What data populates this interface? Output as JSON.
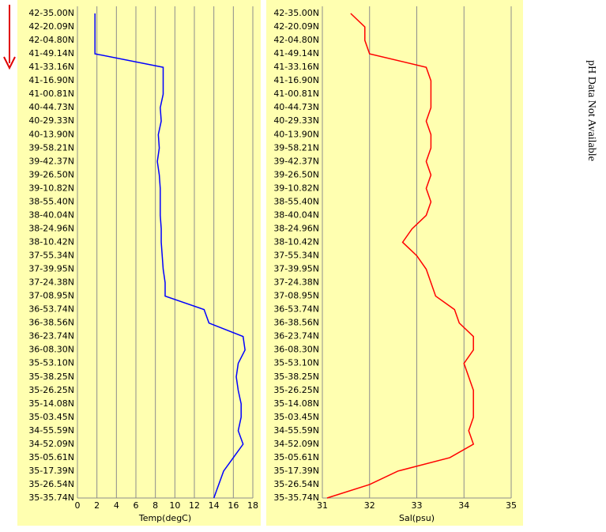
{
  "chart_data": [
    {
      "type": "line",
      "xlabel": "Temp(degC)",
      "color": "#0000ff",
      "grid": true,
      "categories": [
        "42-35.00N",
        "42-20.09N",
        "42-04.80N",
        "41-49.14N",
        "41-33.16N",
        "41-16.90N",
        "41-00.81N",
        "40-44.73N",
        "40-29.33N",
        "40-13.90N",
        "39-58.21N",
        "39-42.37N",
        "39-26.50N",
        "39-10.82N",
        "38-55.40N",
        "38-40.04N",
        "38-24.96N",
        "38-10.42N",
        "37-55.34N",
        "37-39.95N",
        "37-24.38N",
        "37-08.95N",
        "36-53.74N",
        "36-38.56N",
        "36-23.74N",
        "36-08.30N",
        "35-53.10N",
        "35-38.25N",
        "35-26.25N",
        "35-14.08N",
        "35-03.45N",
        "34-55.59N",
        "34-52.09N",
        "35-05.61N",
        "35-17.39N",
        "35-26.54N",
        "35-35.74N"
      ],
      "values": [
        1.8,
        1.8,
        1.8,
        1.8,
        8.8,
        8.8,
        8.8,
        8.5,
        8.6,
        8.3,
        8.4,
        8.2,
        8.4,
        8.5,
        8.5,
        8.5,
        8.6,
        8.6,
        8.7,
        8.8,
        9.0,
        9.0,
        13.0,
        13.5,
        17.0,
        17.2,
        16.5,
        16.3,
        16.5,
        16.8,
        16.8,
        16.5,
        17.0,
        16.0,
        15.0,
        14.5,
        14.0
      ],
      "xlim": [
        0,
        18
      ],
      "xticks": [
        0,
        2,
        4,
        6,
        8,
        10,
        12,
        14,
        16,
        18
      ]
    },
    {
      "type": "line",
      "xlabel": "Sal(psu)",
      "color": "#ff0000",
      "grid": true,
      "categories": [
        "42-35.00N",
        "42-20.09N",
        "42-04.80N",
        "41-49.14N",
        "41-33.16N",
        "41-16.90N",
        "41-00.81N",
        "40-44.73N",
        "40-29.33N",
        "40-13.90N",
        "39-58.21N",
        "39-42.37N",
        "39-26.50N",
        "39-10.82N",
        "38-55.40N",
        "38-40.04N",
        "38-24.96N",
        "38-10.42N",
        "37-55.34N",
        "37-39.95N",
        "37-24.38N",
        "37-08.95N",
        "36-53.74N",
        "36-38.56N",
        "36-23.74N",
        "36-08.30N",
        "35-53.10N",
        "35-38.25N",
        "35-26.25N",
        "35-14.08N",
        "35-03.45N",
        "34-55.59N",
        "34-52.09N",
        "35-05.61N",
        "35-17.39N",
        "35-26.54N",
        "35-35.74N"
      ],
      "values": [
        31.6,
        31.9,
        31.9,
        32.0,
        33.2,
        33.3,
        33.3,
        33.3,
        33.2,
        33.3,
        33.3,
        33.2,
        33.3,
        33.2,
        33.3,
        33.2,
        32.9,
        32.7,
        33.0,
        33.2,
        33.3,
        33.4,
        33.8,
        33.9,
        34.2,
        34.2,
        34.0,
        34.1,
        34.2,
        34.2,
        34.2,
        34.1,
        34.2,
        33.7,
        32.6,
        32.0,
        31.1
      ],
      "xlim": [
        31,
        35
      ],
      "xticks": [
        31,
        32,
        33,
        34,
        35
      ]
    }
  ],
  "annotation": "pH Data Not Available"
}
